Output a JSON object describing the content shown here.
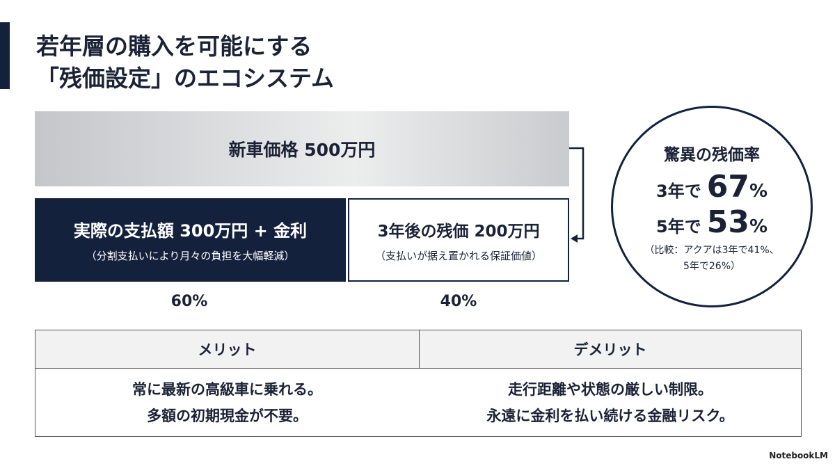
{
  "header": {
    "title_lines": [
      "若年層の購入を可能にする",
      "「残価設定」のエコシステム"
    ]
  },
  "diagram": {
    "top_bar": "新車価格 500万円",
    "left_box": {
      "main": "実際の支払額 300万円 + 金利",
      "sub": "（分割支払いにより月々の負担を大幅軽減）",
      "share": "60%"
    },
    "right_box": {
      "main": "3年後の残価 200万円",
      "sub": "（支払いが据え置かれる保証価値）",
      "share": "40%"
    },
    "circle": {
      "title": "驚異の残価率",
      "rows": [
        {
          "label": "3年で",
          "value": "67",
          "unit": "%"
        },
        {
          "label": "5年で",
          "value": "53",
          "unit": "%"
        }
      ],
      "note_lines": [
        "（比較：アクアは3年で41%、",
        "5年で26%）"
      ]
    }
  },
  "table": {
    "headers": [
      "メリット",
      "デメリット"
    ],
    "cells": [
      [
        "常に最新の高級車に乗れる。",
        "多額の初期現金が不要。"
      ],
      [
        "走行距離や状態の厳しい制限。",
        "永遠に金利を払い続ける金融リスク。"
      ]
    ]
  },
  "footer": {
    "brand": "NotebookLM"
  }
}
